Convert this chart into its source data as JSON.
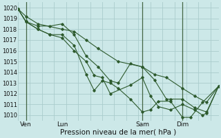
{
  "background_color": "#cce8e8",
  "grid_color": "#aacccc",
  "line_color": "#2d5a2d",
  "ylabel_values": [
    1010,
    1011,
    1012,
    1013,
    1014,
    1015,
    1016,
    1017,
    1018,
    1019,
    1020
  ],
  "xlim": [
    0,
    100
  ],
  "ylim": [
    1009.5,
    1020.5
  ],
  "xlabel": "Pression niveau de la mer( hPa )",
  "xtick_positions": [
    4,
    22,
    62,
    82
  ],
  "xtick_labels": [
    "Ven",
    "Lun",
    "Sam",
    "Dim"
  ],
  "vline_positions": [
    4,
    62,
    82
  ],
  "series": [
    [
      0,
      1019.9,
      4,
      1019.2,
      10,
      1018.5,
      22,
      1018.0,
      28,
      1017.8,
      34,
      1017.0,
      40,
      1016.2,
      50,
      1015.0,
      62,
      1014.5,
      68,
      1013.8,
      74,
      1013.5,
      82,
      1012.5,
      88,
      1011.8,
      94,
      1011.2,
      100,
      1012.7
    ],
    [
      0,
      1019.9,
      4,
      1018.7,
      10,
      1018.3,
      16,
      1018.3,
      22,
      1018.5,
      28,
      1017.5,
      34,
      1015.5,
      40,
      1014.5,
      46,
      1013.2,
      50,
      1013.0,
      56,
      1014.8,
      62,
      1014.5,
      68,
      1013.3,
      74,
      1011.5,
      76,
      1011.5,
      82,
      1011.5,
      88,
      1010.7,
      94,
      1010.3,
      100,
      1012.7
    ],
    [
      0,
      1019.9,
      4,
      1018.7,
      10,
      1018.0,
      16,
      1017.5,
      22,
      1017.5,
      28,
      1016.5,
      34,
      1013.8,
      38,
      1012.3,
      42,
      1013.2,
      46,
      1013.0,
      50,
      1012.5,
      56,
      1011.5,
      62,
      1010.3,
      66,
      1010.5,
      70,
      1011.3,
      76,
      1011.3,
      82,
      1009.8,
      86,
      1009.8,
      92,
      1011.2,
      100,
      1012.7
    ],
    [
      0,
      1019.9,
      4,
      1018.7,
      10,
      1018.0,
      16,
      1017.5,
      22,
      1017.2,
      28,
      1016.0,
      34,
      1015.0,
      38,
      1013.7,
      42,
      1013.5,
      46,
      1012.0,
      56,
      1012.8,
      62,
      1013.5,
      66,
      1011.8,
      70,
      1010.8,
      76,
      1010.5,
      82,
      1011.0,
      88,
      1010.5,
      92,
      1010.0,
      94,
      1010.2,
      100,
      1012.7
    ]
  ]
}
